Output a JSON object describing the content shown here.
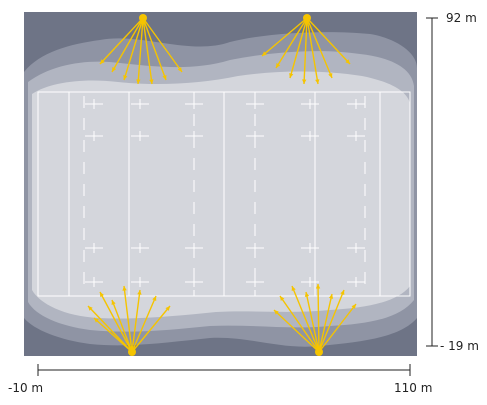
{
  "diagram": {
    "y_axis": {
      "top_label": "92 m",
      "bottom_label": "- 19 m"
    },
    "x_axis": {
      "left_label": "-10 m",
      "right_label": "110 m"
    },
    "floodlights": [
      {
        "name": "floodlight-top-left",
        "beams": 7
      },
      {
        "name": "floodlight-top-right",
        "beams": 7
      },
      {
        "name": "floodlight-bottom-left",
        "beams": 8
      },
      {
        "name": "floodlight-bottom-right",
        "beams": 8
      }
    ],
    "colors": {
      "illuminance_bands": [
        "#6e7486",
        "#8f94a4",
        "#b1b5c1",
        "#d4d6dc"
      ],
      "pitch_lines": "#ffffff",
      "floodlight": "#f5c400",
      "dimension_line": "#222222"
    }
  }
}
